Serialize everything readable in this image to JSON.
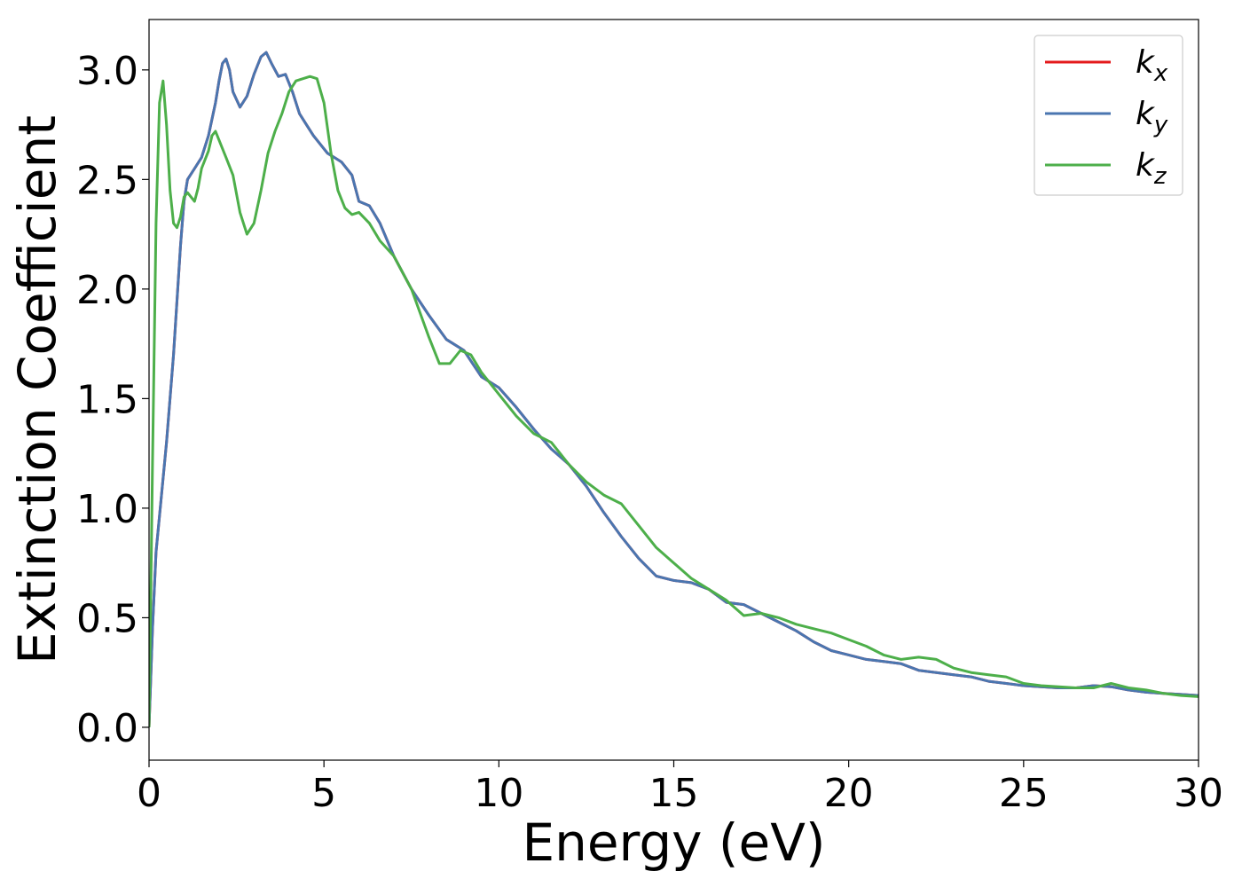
{
  "chart_data": {
    "type": "line",
    "xlabel": "Energy (eV)",
    "ylabel": "Extinction Coefficient",
    "xlim": [
      0,
      30
    ],
    "ylim": [
      -0.15,
      3.23
    ],
    "xticks": [
      0,
      5,
      10,
      15,
      20,
      25,
      30
    ],
    "xtick_labels": [
      "0",
      "5",
      "10",
      "15",
      "20",
      "25",
      "30"
    ],
    "yticks": [
      0.0,
      0.5,
      1.0,
      1.5,
      2.0,
      2.5,
      3.0
    ],
    "ytick_labels": [
      "0.0",
      "0.5",
      "1.0",
      "1.5",
      "2.0",
      "2.5",
      "3.0"
    ],
    "grid": false,
    "legend_position": "top-right",
    "series": [
      {
        "name": "k",
        "sub": "x",
        "color": "#e41a1c",
        "x": [
          0,
          0.1,
          0.2,
          0.35,
          0.5,
          0.7,
          0.9,
          1.0,
          1.1,
          1.3,
          1.5,
          1.7,
          1.9,
          2.0,
          2.1,
          2.2,
          2.3,
          2.4,
          2.6,
          2.8,
          3.0,
          3.2,
          3.35,
          3.5,
          3.7,
          3.9,
          4.1,
          4.3,
          4.5,
          4.7,
          4.9,
          5.1,
          5.3,
          5.5,
          5.8,
          6.0,
          6.3,
          6.6,
          7.0,
          7.5,
          8.0,
          8.5,
          9.0,
          9.5,
          10.0,
          10.5,
          11.0,
          11.5,
          12.0,
          12.5,
          13.0,
          13.5,
          14.0,
          14.5,
          15.0,
          15.5,
          16.0,
          16.5,
          17.0,
          17.5,
          18.0,
          18.5,
          19.0,
          19.5,
          20.0,
          20.5,
          21.0,
          21.5,
          22.0,
          22.5,
          23.0,
          23.5,
          24.0,
          24.5,
          25.0,
          25.5,
          26.0,
          26.5,
          27.0,
          27.5,
          28.0,
          28.5,
          29.0,
          29.5,
          30.0
        ],
        "y": [
          0.0,
          0.45,
          0.8,
          1.05,
          1.3,
          1.7,
          2.2,
          2.4,
          2.5,
          2.55,
          2.6,
          2.7,
          2.85,
          2.95,
          3.03,
          3.05,
          3.0,
          2.9,
          2.83,
          2.88,
          2.98,
          3.06,
          3.08,
          3.03,
          2.97,
          2.98,
          2.9,
          2.8,
          2.75,
          2.7,
          2.66,
          2.62,
          2.6,
          2.58,
          2.52,
          2.4,
          2.38,
          2.3,
          2.15,
          2.0,
          1.88,
          1.77,
          1.72,
          1.6,
          1.55,
          1.46,
          1.36,
          1.27,
          1.2,
          1.1,
          0.98,
          0.87,
          0.77,
          0.69,
          0.67,
          0.66,
          0.63,
          0.57,
          0.56,
          0.52,
          0.48,
          0.44,
          0.39,
          0.35,
          0.33,
          0.31,
          0.3,
          0.29,
          0.26,
          0.25,
          0.24,
          0.23,
          0.21,
          0.2,
          0.19,
          0.185,
          0.18,
          0.18,
          0.19,
          0.185,
          0.17,
          0.16,
          0.155,
          0.15,
          0.145
        ]
      },
      {
        "name": "k",
        "sub": "y",
        "color": "#4a76b0",
        "x": [
          0,
          0.1,
          0.2,
          0.35,
          0.5,
          0.7,
          0.9,
          1.0,
          1.1,
          1.3,
          1.5,
          1.7,
          1.9,
          2.0,
          2.1,
          2.2,
          2.3,
          2.4,
          2.6,
          2.8,
          3.0,
          3.2,
          3.35,
          3.5,
          3.7,
          3.9,
          4.1,
          4.3,
          4.5,
          4.7,
          4.9,
          5.1,
          5.3,
          5.5,
          5.8,
          6.0,
          6.3,
          6.6,
          7.0,
          7.5,
          8.0,
          8.5,
          9.0,
          9.5,
          10.0,
          10.5,
          11.0,
          11.5,
          12.0,
          12.5,
          13.0,
          13.5,
          14.0,
          14.5,
          15.0,
          15.5,
          16.0,
          16.5,
          17.0,
          17.5,
          18.0,
          18.5,
          19.0,
          19.5,
          20.0,
          20.5,
          21.0,
          21.5,
          22.0,
          22.5,
          23.0,
          23.5,
          24.0,
          24.5,
          25.0,
          25.5,
          26.0,
          26.5,
          27.0,
          27.5,
          28.0,
          28.5,
          29.0,
          29.5,
          30.0
        ],
        "y": [
          0.0,
          0.45,
          0.8,
          1.05,
          1.3,
          1.7,
          2.2,
          2.4,
          2.5,
          2.55,
          2.6,
          2.7,
          2.85,
          2.95,
          3.03,
          3.05,
          3.0,
          2.9,
          2.83,
          2.88,
          2.98,
          3.06,
          3.08,
          3.03,
          2.97,
          2.98,
          2.9,
          2.8,
          2.75,
          2.7,
          2.66,
          2.62,
          2.6,
          2.58,
          2.52,
          2.4,
          2.38,
          2.3,
          2.15,
          2.0,
          1.88,
          1.77,
          1.72,
          1.6,
          1.55,
          1.46,
          1.36,
          1.27,
          1.2,
          1.1,
          0.98,
          0.87,
          0.77,
          0.69,
          0.67,
          0.66,
          0.63,
          0.57,
          0.56,
          0.52,
          0.48,
          0.44,
          0.39,
          0.35,
          0.33,
          0.31,
          0.3,
          0.29,
          0.26,
          0.25,
          0.24,
          0.23,
          0.21,
          0.2,
          0.19,
          0.185,
          0.18,
          0.18,
          0.19,
          0.185,
          0.17,
          0.16,
          0.155,
          0.15,
          0.145
        ]
      },
      {
        "name": "k",
        "sub": "z",
        "color": "#4daf4a",
        "x": [
          0,
          0.1,
          0.2,
          0.3,
          0.4,
          0.5,
          0.6,
          0.7,
          0.8,
          0.9,
          1.0,
          1.1,
          1.2,
          1.3,
          1.4,
          1.5,
          1.7,
          1.8,
          1.9,
          2.0,
          2.2,
          2.4,
          2.6,
          2.8,
          3.0,
          3.2,
          3.4,
          3.6,
          3.8,
          4.0,
          4.2,
          4.4,
          4.6,
          4.8,
          5.0,
          5.2,
          5.4,
          5.6,
          5.8,
          6.0,
          6.3,
          6.6,
          7.0,
          7.5,
          8.0,
          8.3,
          8.6,
          8.9,
          9.2,
          9.5,
          10.0,
          10.5,
          11.0,
          11.5,
          12.0,
          12.5,
          13.0,
          13.5,
          14.0,
          14.5,
          15.0,
          15.5,
          16.0,
          16.5,
          17.0,
          17.5,
          18.0,
          18.5,
          19.0,
          19.5,
          20.0,
          20.5,
          21.0,
          21.5,
          22.0,
          22.5,
          23.0,
          23.5,
          24.0,
          24.5,
          25.0,
          25.5,
          26.0,
          26.5,
          27.0,
          27.5,
          28.0,
          28.5,
          29.0,
          29.5,
          30.0
        ],
        "y": [
          0.0,
          1.2,
          2.3,
          2.85,
          2.95,
          2.75,
          2.45,
          2.3,
          2.28,
          2.33,
          2.42,
          2.44,
          2.42,
          2.4,
          2.46,
          2.55,
          2.63,
          2.7,
          2.72,
          2.68,
          2.6,
          2.52,
          2.35,
          2.25,
          2.3,
          2.45,
          2.62,
          2.72,
          2.8,
          2.9,
          2.95,
          2.96,
          2.97,
          2.96,
          2.85,
          2.62,
          2.45,
          2.37,
          2.34,
          2.35,
          2.3,
          2.22,
          2.15,
          2.0,
          1.78,
          1.66,
          1.66,
          1.72,
          1.7,
          1.62,
          1.52,
          1.42,
          1.34,
          1.3,
          1.2,
          1.12,
          1.06,
          1.02,
          0.92,
          0.82,
          0.75,
          0.68,
          0.63,
          0.58,
          0.51,
          0.52,
          0.5,
          0.47,
          0.45,
          0.43,
          0.4,
          0.37,
          0.33,
          0.31,
          0.32,
          0.31,
          0.27,
          0.25,
          0.24,
          0.23,
          0.2,
          0.19,
          0.185,
          0.18,
          0.18,
          0.2,
          0.18,
          0.17,
          0.155,
          0.145,
          0.14
        ]
      }
    ]
  }
}
